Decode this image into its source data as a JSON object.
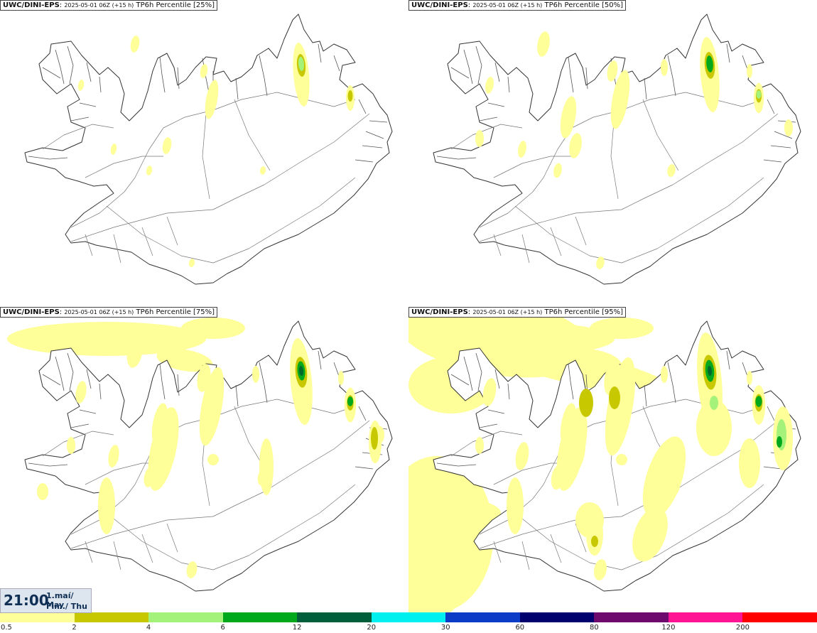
{
  "panels": [
    {
      "model": "UWC/DINI-EPS",
      "run": "2025-05-01 06Z (+15 h)",
      "product": "TP6h Percentile [25%]",
      "level": 0
    },
    {
      "model": "UWC/DINI-EPS",
      "run": "2025-05-01 06Z (+15 h)",
      "product": "TP6h Percentile [50%]",
      "level": 1
    },
    {
      "model": "UWC/DINI-EPS",
      "run": "2025-05-01 06Z (+15 h)",
      "product": "TP6h Percentile [75%]",
      "level": 2
    },
    {
      "model": "UWC/DINI-EPS",
      "run": "2025-05-01 06Z (+15 h)",
      "product": "TP6h Percentile [95%]",
      "level": 3
    }
  ],
  "valid_time": {
    "time": "21:00",
    "date_line1": "1.maí/ May",
    "date_line2": "Fim./ Thu"
  },
  "legend": {
    "labels": [
      "0.5",
      "2",
      "4",
      "6",
      "12",
      "20",
      "30",
      "60",
      "80",
      "120",
      "200"
    ],
    "colors": [
      "#ffff99",
      "#c8c800",
      "#a4f27a",
      "#00a81c",
      "#005e3a",
      "#00f0f0",
      "#0a3cc8",
      "#00006e",
      "#6e0a6e",
      "#ff1493",
      "#ff0000"
    ]
  }
}
